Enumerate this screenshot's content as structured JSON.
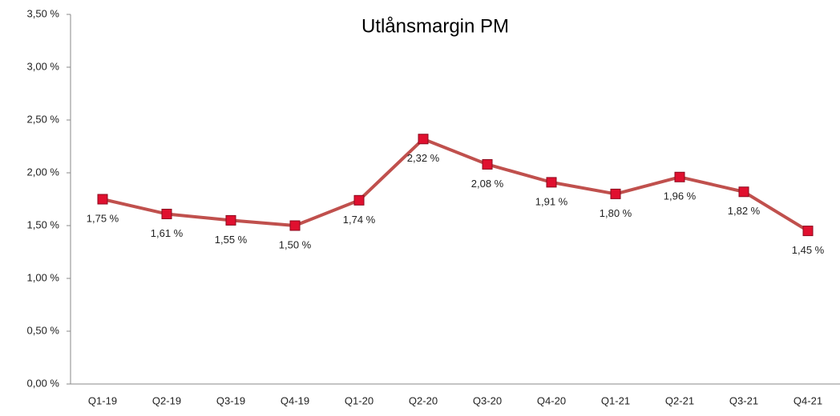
{
  "chart_data": {
    "type": "line",
    "title": "Utlånsmargin PM",
    "categories": [
      "Q1-19",
      "Q2-19",
      "Q3-19",
      "Q4-19",
      "Q1-20",
      "Q2-20",
      "Q3-20",
      "Q4-20",
      "Q1-21",
      "Q2-21",
      "Q3-21",
      "Q4-21"
    ],
    "series": [
      {
        "name": "Utlånsmargin PM",
        "color": "#c0504d",
        "values": [
          1.75,
          1.61,
          1.55,
          1.5,
          1.74,
          2.32,
          2.08,
          1.91,
          1.8,
          1.96,
          1.82,
          1.45
        ],
        "value_labels": [
          "1,75 %",
          "1,61 %",
          "1,55 %",
          "1,50 %",
          "1,74 %",
          "2,32 %",
          "2,08 %",
          "1,91 %",
          "1,80 %",
          "1,96 %",
          "1,82 %",
          "1,45 %"
        ]
      }
    ],
    "marker_color": "#e0102f",
    "ylim": [
      0,
      3.5
    ],
    "yticks": [
      {
        "value": 0,
        "label": "0,00 %"
      },
      {
        "value": 0.5,
        "label": "0,50 %"
      },
      {
        "value": 1,
        "label": "1,00 %"
      },
      {
        "value": 1.5,
        "label": "1,50 %"
      },
      {
        "value": 2,
        "label": "2,00 %"
      },
      {
        "value": 2.5,
        "label": "2,50 %"
      },
      {
        "value": 3,
        "label": "3,00 %"
      },
      {
        "value": 3.5,
        "label": "3,50 %"
      }
    ],
    "grid": false
  }
}
